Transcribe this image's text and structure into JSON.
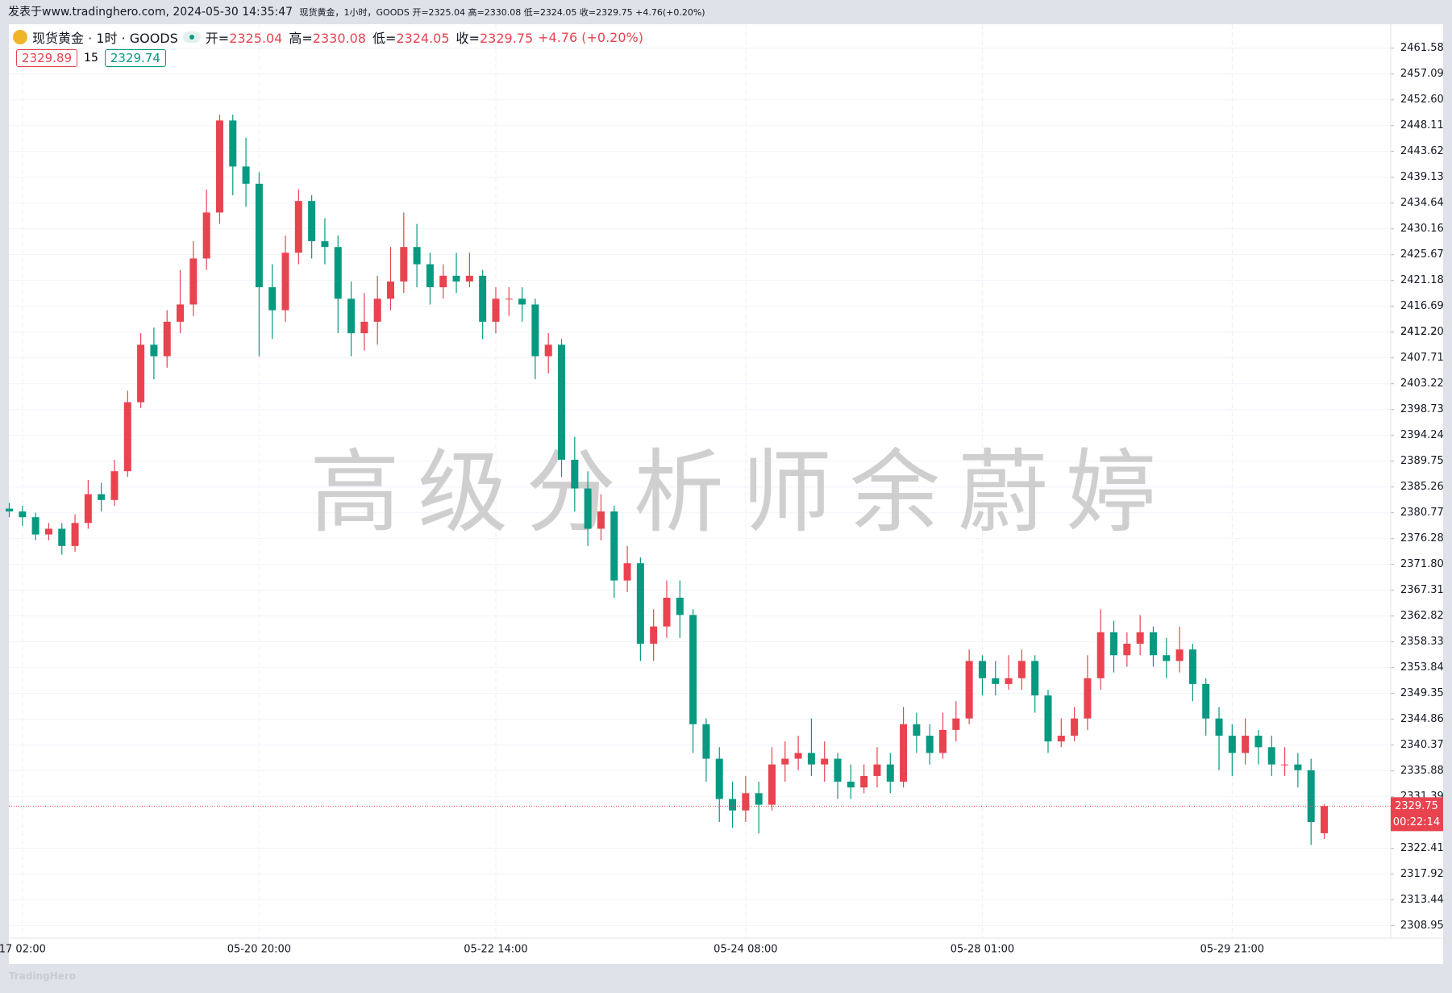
{
  "chart_data": {
    "type": "candlestick",
    "published": "发表于www.tradinghero.com, 2024-05-30 14:35:47",
    "caption": "现货黄金，1小时，GOODS 开=2325.04 高=2330.08 低=2324.05 收=2329.75 +4.76(+0.20%)",
    "symbol": "现货黄金 · 1时 · GOODS",
    "ohlc_legend": [
      {
        "label": "开=",
        "value": "2325.04"
      },
      {
        "label": "高=",
        "value": "2330.08"
      },
      {
        "label": "低=",
        "value": "2324.05"
      },
      {
        "label": "收=",
        "value": "2329.75"
      }
    ],
    "change": "+4.76 (+0.20%)",
    "bid": "2329.89",
    "spread": "15",
    "ask": "2329.74",
    "watermark": "高级分析师余蔚婷",
    "last_price": 2329.75,
    "countdown": "00:22:14",
    "footer": "TradingHero",
    "up_color": "#e8434f",
    "down_color": "#089981",
    "grid": true,
    "ylim": [
      2306.79,
      2465.75
    ],
    "yticks": [
      2308.95,
      2313.44,
      2317.92,
      2322.41,
      2331.39,
      2335.88,
      2340.37,
      2344.86,
      2349.35,
      2353.84,
      2358.33,
      2362.82,
      2367.31,
      {
        "value": 2371.8,
        "label": "2371.80"
      },
      2376.28,
      2380.77,
      2385.26,
      2389.75,
      2394.24,
      2398.73,
      2403.22,
      2407.71,
      2412.2,
      {
        "value": 2412.2,
        "label": "2412.20"
      },
      2416.69,
      2421.18,
      2425.67,
      2430.16,
      2434.64,
      2439.13,
      2443.62,
      2448.11,
      {
        "value": 2452.6,
        "label": "2452.60"
      },
      2457.09,
      2461.58
    ],
    "categories": [
      null,
      "17 02:00",
      null,
      null,
      null,
      null,
      null,
      null,
      null,
      null,
      null,
      null,
      null,
      null,
      null,
      null,
      null,
      null,
      null,
      "05-20 20:00",
      null,
      null,
      null,
      null,
      null,
      null,
      null,
      null,
      null,
      null,
      null,
      null,
      null,
      null,
      null,
      null,
      null,
      "05-22 14:00",
      null,
      null,
      null,
      null,
      null,
      null,
      null,
      null,
      null,
      null,
      null,
      null,
      null,
      null,
      null,
      null,
      null,
      null,
      "05-24 08:00",
      null,
      null,
      null,
      null,
      null,
      null,
      null,
      null,
      null,
      null,
      null,
      null,
      null,
      null,
      null,
      null,
      null,
      "05-28 01:00",
      null,
      null,
      null,
      null,
      null,
      null,
      null,
      null,
      null,
      null,
      null,
      null,
      null,
      null,
      null,
      null,
      null,
      null,
      "05-29 21:00",
      null,
      null,
      null,
      null,
      null,
      null,
      null
    ],
    "ohlc": [
      [
        2381.5,
        2382.5,
        2380,
        2381
      ],
      [
        2381,
        2382,
        2378.5,
        2380
      ],
      [
        2380,
        2380.8,
        2376,
        2377
      ],
      [
        2377,
        2379,
        2376,
        2378
      ],
      [
        2378,
        2379,
        2373.5,
        2375
      ],
      [
        2375,
        2380.5,
        2374,
        2379
      ],
      [
        2379,
        2386.5,
        2378,
        2384
      ],
      [
        2384,
        2386,
        2381,
        2383
      ],
      [
        2383,
        2390,
        2382,
        2388
      ],
      [
        2388,
        2402,
        2387,
        2400
      ],
      [
        2400,
        2412,
        2399,
        2410
      ],
      [
        2410,
        2413,
        2404,
        2408
      ],
      [
        2408,
        2416,
        2406,
        2414
      ],
      [
        2414,
        2423,
        2412,
        2417
      ],
      [
        2417,
        2428,
        2415,
        2425
      ],
      [
        2425,
        2437,
        2423,
        2433
      ],
      [
        2433,
        2450,
        2431,
        2449
      ],
      [
        2449,
        2450,
        2436,
        2441
      ],
      [
        2441,
        2446,
        2434,
        2438
      ],
      [
        2438,
        2440,
        2408,
        2420
      ],
      [
        2420,
        2424,
        2411,
        2416
      ],
      [
        2416,
        2429,
        2414,
        2426
      ],
      [
        2426,
        2437,
        2424,
        2435
      ],
      [
        2435,
        2436,
        2425,
        2428
      ],
      [
        2428,
        2432,
        2424,
        2427
      ],
      [
        2427,
        2429,
        2412,
        2418
      ],
      [
        2418,
        2421,
        2408,
        2412
      ],
      [
        2412,
        2419,
        2409,
        2414
      ],
      [
        2414,
        2422,
        2410,
        2418
      ],
      [
        2418,
        2427,
        2416,
        2421
      ],
      [
        2421,
        2433,
        2419,
        2427
      ],
      [
        2427,
        2431,
        2420,
        2424
      ],
      [
        2424,
        2426,
        2417,
        2420
      ],
      [
        2420,
        2424,
        2418,
        2422
      ],
      [
        2422,
        2426,
        2419,
        2421
      ],
      [
        2421,
        2426,
        2420,
        2422
      ],
      [
        2422,
        2423,
        2411,
        2414
      ],
      [
        2414,
        2420,
        2412,
        2418
      ],
      [
        2418,
        2420,
        2415,
        2418
      ],
      [
        2418,
        2420,
        2414,
        2417
      ],
      [
        2417,
        2418,
        2404,
        2408
      ],
      [
        2408,
        2412,
        2405,
        2410
      ],
      [
        2410,
        2411,
        2387,
        2390
      ],
      [
        2390,
        2394,
        2381,
        2385
      ],
      [
        2385,
        2388,
        2375,
        2378
      ],
      [
        2378,
        2384,
        2376,
        2381
      ],
      [
        2381,
        2382,
        2366,
        2369
      ],
      [
        2369,
        2375,
        2367,
        2372
      ],
      [
        2372,
        2373,
        2355,
        2358
      ],
      [
        2358,
        2364,
        2355,
        2361
      ],
      [
        2361,
        2369,
        2359,
        2366
      ],
      [
        2366,
        2369,
        2359,
        2363
      ],
      [
        2363,
        2364,
        2339,
        2344
      ],
      [
        2344,
        2345,
        2334,
        2338
      ],
      [
        2338,
        2340,
        2327,
        2331
      ],
      [
        2331,
        2334,
        2326,
        2329
      ],
      [
        2329,
        2335,
        2327,
        2332
      ],
      [
        2332,
        2334,
        2325,
        2330
      ],
      [
        2330,
        2340,
        2329,
        2337
      ],
      [
        2337,
        2341,
        2334,
        2338
      ],
      [
        2338,
        2342,
        2336,
        2339
      ],
      [
        2339,
        2345,
        2335,
        2337
      ],
      [
        2337,
        2341,
        2334,
        2338
      ],
      [
        2338,
        2339,
        2331,
        2334
      ],
      [
        2334,
        2337,
        2331,
        2333
      ],
      [
        2333,
        2337,
        2332,
        2335
      ],
      [
        2335,
        2340,
        2333,
        2337
      ],
      [
        2337,
        2339,
        2332,
        2334
      ],
      [
        2334,
        2347,
        2333,
        2344
      ],
      [
        2344,
        2346,
        2339,
        2342
      ],
      [
        2342,
        2344,
        2337,
        2339
      ],
      [
        2339,
        2346,
        2338,
        2343
      ],
      [
        2343,
        2348,
        2341,
        2345
      ],
      [
        2345,
        2357,
        2344,
        2355
      ],
      [
        2355,
        2356,
        2349,
        2352
      ],
      [
        2352,
        2355,
        2349,
        2351
      ],
      [
        2351,
        2356,
        2350,
        2352
      ],
      [
        2352,
        2357,
        2350,
        2355
      ],
      [
        2355,
        2356,
        2346,
        2349
      ],
      [
        2349,
        2350,
        2339,
        2341
      ],
      [
        2341,
        2345,
        2340,
        2342
      ],
      [
        2342,
        2347,
        2341,
        2345
      ],
      [
        2345,
        2356,
        2343,
        2352
      ],
      [
        2352,
        2364,
        2350,
        2360
      ],
      [
        2360,
        2362,
        2353,
        2356
      ],
      [
        2356,
        2360,
        2354,
        2358
      ],
      [
        2358,
        2363,
        2356,
        2360
      ],
      [
        2360,
        2361,
        2354,
        2356
      ],
      [
        2356,
        2359,
        2352,
        2355
      ],
      [
        2355,
        2361,
        2353,
        2357
      ],
      [
        2357,
        2358,
        2348,
        2351
      ],
      [
        2351,
        2352,
        2342,
        2345
      ],
      [
        2345,
        2347,
        2336,
        2342
      ],
      [
        2342,
        2344,
        2335,
        2339
      ],
      [
        2339,
        2345,
        2337,
        2342
      ],
      [
        2342,
        2343,
        2337,
        2340
      ],
      [
        2340,
        2342,
        2335,
        2337
      ],
      [
        2337,
        2340,
        2335,
        2337
      ],
      [
        2337,
        2339,
        2333,
        2336
      ],
      [
        2336,
        2338,
        2323,
        2327
      ],
      [
        2325.04,
        2330.08,
        2324.05,
        2329.75
      ]
    ]
  }
}
